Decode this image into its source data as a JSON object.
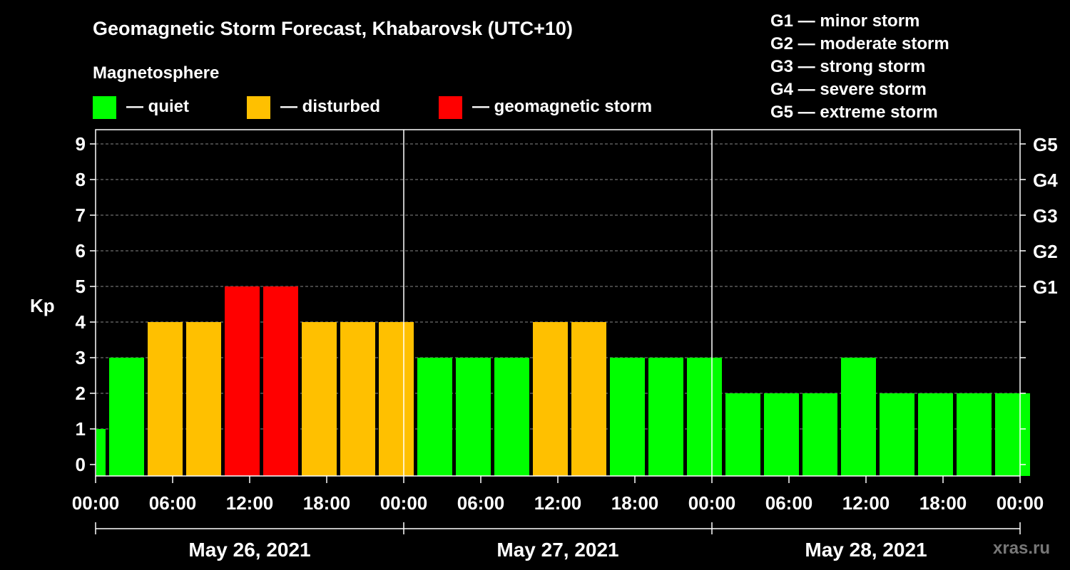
{
  "colors": {
    "quiet": "#00ff00",
    "disturbed": "#ffc000",
    "storm": "#ff0000",
    "background": "#000000",
    "foreground": "#ffffff"
  },
  "header": {
    "title": "Geomagnetic Storm Forecast, Khabarovsk (UTC+10)",
    "subtitle": "Magnetosphere"
  },
  "legend": [
    {
      "key": "quiet",
      "label": "— quiet"
    },
    {
      "key": "disturbed",
      "label": "— disturbed"
    },
    {
      "key": "storm",
      "label": "— geomagnetic storm"
    }
  ],
  "g_scale": [
    "G1 — minor storm",
    "G2 — moderate storm",
    "G3 — strong storm",
    "G4 — severe storm",
    "G5 — extreme storm"
  ],
  "watermark": "xras.ru",
  "chart_data": {
    "type": "bar",
    "title": "Geomagnetic Storm Forecast, Khabarovsk (UTC+10)",
    "ylabel": "Kp",
    "ylim": [
      0,
      9
    ],
    "yticks": [
      "0",
      "1",
      "2",
      "3",
      "4",
      "5",
      "6",
      "7",
      "8",
      "9"
    ],
    "right_ticks": [
      {
        "kp": 5,
        "label": "G1"
      },
      {
        "kp": 6,
        "label": "G2"
      },
      {
        "kp": 7,
        "label": "G3"
      },
      {
        "kp": 8,
        "label": "G4"
      },
      {
        "kp": 9,
        "label": "G5"
      }
    ],
    "interval_hours": 3,
    "first_bar_hours": 1,
    "total_hours": 72,
    "xtick_labels": [
      "00:00",
      "06:00",
      "12:00",
      "18:00",
      "00:00",
      "06:00",
      "12:00",
      "18:00",
      "00:00",
      "06:00",
      "12:00",
      "18:00",
      "00:00"
    ],
    "days": [
      "May 26, 2021",
      "May 27, 2021",
      "May 28, 2021"
    ],
    "values": [
      1,
      3,
      4,
      4,
      5,
      5,
      4,
      4,
      4,
      3,
      3,
      3,
      4,
      4,
      3,
      3,
      3,
      2,
      2,
      2,
      3,
      2,
      2,
      2,
      2
    ],
    "levels": [
      "quiet",
      "quiet",
      "disturbed",
      "disturbed",
      "storm",
      "storm",
      "disturbed",
      "disturbed",
      "disturbed",
      "quiet",
      "quiet",
      "quiet",
      "disturbed",
      "disturbed",
      "quiet",
      "quiet",
      "quiet",
      "quiet",
      "quiet",
      "quiet",
      "quiet",
      "quiet",
      "quiet",
      "quiet",
      "quiet"
    ]
  }
}
